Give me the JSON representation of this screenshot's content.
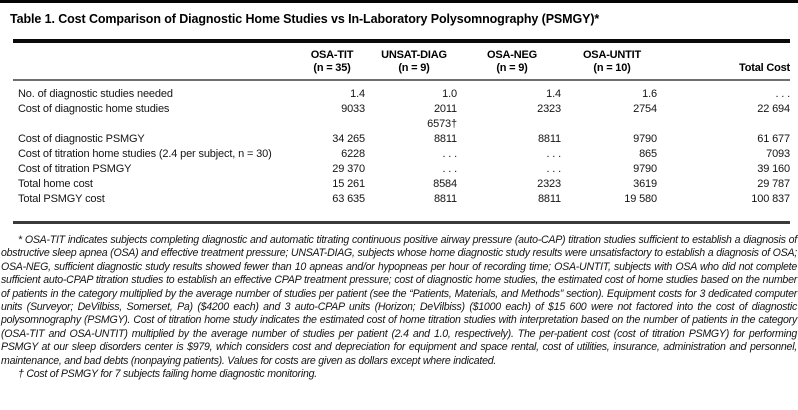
{
  "title": "Table 1. Cost Comparison of Diagnostic Home Studies vs In-Laboratory Polysomnography (PSMGY)*",
  "table": {
    "columns": [
      {
        "name": "OSA-TIT",
        "n": "(n = 35)"
      },
      {
        "name": "UNSAT-DIAG",
        "n": "(n = 9)"
      },
      {
        "name": "OSA-NEG",
        "n": "(n = 9)"
      },
      {
        "name": "OSA-UNTIT",
        "n": "(n = 10)"
      },
      {
        "name": "Total Cost",
        "n": ""
      }
    ],
    "rows": [
      {
        "label": "No. of diagnostic studies needed",
        "values": [
          "1.4",
          "1.0",
          "1.4",
          "1.6",
          ". . ."
        ]
      },
      {
        "label": "Cost of diagnostic home studies",
        "values": [
          "9033",
          "2011",
          "2323",
          "2754",
          "22 694"
        ],
        "values2": [
          "",
          "6573†",
          "",
          "",
          ""
        ]
      },
      {
        "label": "Cost of diagnostic PSMGY",
        "values": [
          "34 265",
          "8811",
          "8811",
          "9790",
          "61 677"
        ]
      },
      {
        "label": "Cost of titration home studies (2.4 per subject, n = 30)",
        "values": [
          "6228",
          ". . .",
          ". . .",
          "865",
          "7093"
        ]
      },
      {
        "label": "Cost of titration PSMGY",
        "values": [
          "29 370",
          ". . .",
          ". . .",
          "9790",
          "39 160"
        ]
      },
      {
        "label": "Total home cost",
        "values": [
          "15 261",
          "8584",
          "2323",
          "3619",
          "29 787"
        ]
      },
      {
        "label": "Total PSMGY cost",
        "values": [
          "63 635",
          "8811",
          "8811",
          "19 580",
          "100 837"
        ]
      }
    ]
  },
  "footnotes": {
    "star": "* OSA-TIT indicates subjects completing diagnostic and automatic titrating continuous positive airway pressure (auto-CAP) titration studies sufficient to establish a diagnosis of obstructive sleep apnea (OSA) and effective treatment pressure; UNSAT-DIAG, subjects whose home diagnostic study results were unsatisfactory to establish a diagnosis of OSA; OSA-NEG, sufficient diagnostic study results showed fewer than 10 apneas and/or hypopneas per hour of recording time; OSA-UNTIT, subjects with OSA who did not complete sufficient auto-CPAP titration studies to establish an effective CPAP treatment pressure; cost of diagnostic home studies, the estimated cost of home studies based on the number of patients in the category multiplied by the average number of studies per patient (see the “Patients, Materials, and Methods” section). Equipment costs for 3 dedicated computer units (Surveyor; DeVilbiss, Somerset, Pa) ($4200 each) and 3 auto-CPAP units (Horizon; DeVilbiss) ($1000 each) of $15 600 were not factored into the cost of diagnostic polysomnography (PSMGY). Cost of titration home study indicates the estimated cost of home titration studies with interpretation based on the number of patients in the category (OSA-TIT and OSA-UNTIT) multiplied by the average number of studies per patient (2.4 and 1.0, respectively). The per-patient cost (cost of titration PSMGY) for performing PSMGY at our sleep disorders center is $979, which considers cost and depreciation for equipment and space rental, cost of utilities, insurance, administration and personnel, maintenance, and bad debts (nonpaying patients). Values for costs are given as dollars except where indicated.",
    "dagger": "† Cost of PSMGY for 7 subjects failing home diagnostic monitoring."
  }
}
